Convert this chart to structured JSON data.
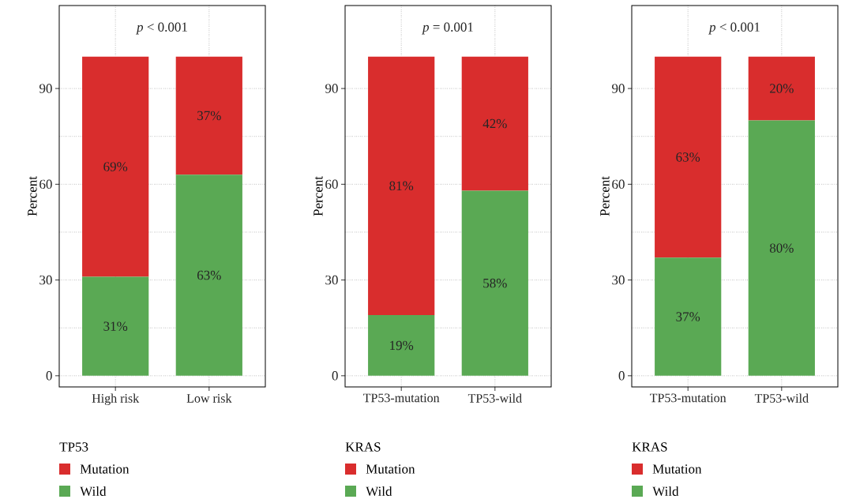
{
  "chart_data": [
    {
      "type": "bar",
      "stacked": true,
      "categories": [
        "High risk",
        "Low risk"
      ],
      "ylabel": "Percent",
      "legend_title": "TP53",
      "annotations": [
        "*p* < 0.001"
      ],
      "ylim": [
        -3.5,
        116
      ],
      "yticks": [
        0,
        30,
        60,
        90
      ],
      "grid": true,
      "legend": "bottom",
      "series": [
        {
          "name": "Wild",
          "color": "#5aa954",
          "values": [
            31,
            63
          ],
          "value_labels": [
            "31%",
            "63%"
          ]
        },
        {
          "name": "Mutation",
          "color": "#d92d2d",
          "values": [
            69,
            37
          ],
          "value_labels": [
            "69%",
            "37%"
          ]
        }
      ]
    },
    {
      "type": "bar",
      "stacked": true,
      "categories": [
        "TP53-mutation",
        "TP53-wild"
      ],
      "ylabel": "Percent",
      "legend_title": "KRAS",
      "annotations": [
        "*p* = 0.001"
      ],
      "ylim": [
        -3.5,
        116
      ],
      "yticks": [
        0,
        30,
        60,
        90
      ],
      "grid": true,
      "legend": "bottom",
      "series": [
        {
          "name": "Wild",
          "color": "#5aa954",
          "values": [
            19,
            58
          ],
          "value_labels": [
            "19%",
            "58%"
          ]
        },
        {
          "name": "Mutation",
          "color": "#d92d2d",
          "values": [
            81,
            42
          ],
          "value_labels": [
            "81%",
            "42%"
          ]
        }
      ]
    },
    {
      "type": "bar",
      "stacked": true,
      "categories": [
        "TP53-mutation",
        "TP53-wild"
      ],
      "ylabel": "Percent",
      "legend_title": "KRAS",
      "annotations": [
        "*p* < 0.001"
      ],
      "ylim": [
        -3.5,
        116
      ],
      "yticks": [
        0,
        30,
        60,
        90
      ],
      "grid": true,
      "legend": "bottom",
      "series": [
        {
          "name": "Wild",
          "color": "#5aa954",
          "values": [
            37,
            80
          ],
          "value_labels": [
            "37%",
            "80%"
          ]
        },
        {
          "name": "Mutation",
          "color": "#d92d2d",
          "values": [
            63,
            20
          ],
          "value_labels": [
            "63%",
            "20%"
          ]
        }
      ]
    }
  ]
}
